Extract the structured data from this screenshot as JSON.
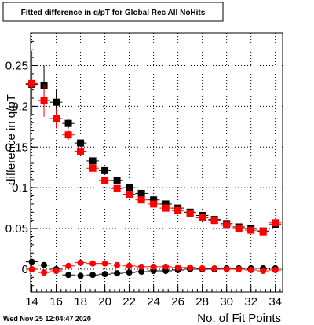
{
  "chart_data": {
    "type": "scatter",
    "title": "Fitted difference in q/pT for Global Rec All NoHits",
    "xlabel": "No. of Fit Points",
    "ylabel": "difference in q/pT",
    "xlim": [
      13.9,
      34.6
    ],
    "ylim": [
      -0.028,
      0.29
    ],
    "xticks": [
      "14",
      "16",
      "18",
      "20",
      "22",
      "24",
      "26",
      "28",
      "30",
      "32",
      "34"
    ],
    "yticks": [
      "0",
      "0.05",
      "0.1",
      "0.15",
      "0.2",
      "0.25"
    ],
    "grid": true,
    "legend": "none",
    "timestamp": "Wed Nov 25 12:04:47 2020",
    "series": [
      {
        "color": "#000000",
        "marker": "square",
        "x": [
          14,
          15,
          16,
          17,
          18,
          19,
          20,
          21,
          22,
          23,
          24,
          25,
          26,
          27,
          28,
          29,
          30,
          31,
          32,
          33,
          34
        ],
        "y": [
          0.227,
          0.225,
          0.205,
          0.179,
          0.155,
          0.133,
          0.121,
          0.109,
          0.1,
          0.093,
          0.085,
          0.08,
          0.075,
          0.07,
          0.066,
          0.061,
          0.056,
          0.052,
          0.05,
          0.047,
          0.055
        ],
        "yerr": [
          0.012,
          0.025,
          0.015,
          0.006,
          0.004,
          0.003,
          0.002,
          0.002,
          0.002,
          0.002,
          0.002,
          0.002,
          0.002,
          0.002,
          0.002,
          0.002,
          0.002,
          0.002,
          0.002,
          0.002,
          0.003
        ]
      },
      {
        "color": "#ff0000",
        "marker": "square",
        "x": [
          14,
          15,
          16,
          17,
          18,
          19,
          20,
          21,
          22,
          23,
          24,
          25,
          26,
          27,
          28,
          29,
          30,
          31,
          32,
          33,
          34
        ],
        "y": [
          0.228,
          0.207,
          0.185,
          0.165,
          0.145,
          0.124,
          0.109,
          0.099,
          0.092,
          0.085,
          0.08,
          0.075,
          0.072,
          0.068,
          0.063,
          0.06,
          0.054,
          0.05,
          0.048,
          0.046,
          0.057
        ],
        "yerr": [
          0.04,
          0.02,
          0.012,
          0.006,
          0.004,
          0.003,
          0.002,
          0.002,
          0.002,
          0.002,
          0.002,
          0.002,
          0.002,
          0.002,
          0.002,
          0.002,
          0.002,
          0.002,
          0.002,
          0.002,
          0.003
        ]
      },
      {
        "color": "#000000",
        "marker": "circle",
        "x": [
          14,
          15,
          16,
          17,
          18,
          19,
          20,
          21,
          22,
          23,
          24,
          25,
          26,
          27,
          28,
          29,
          30,
          31,
          32,
          33,
          34
        ],
        "y": [
          0.009,
          0.005,
          0,
          -0.007,
          -0.008,
          -0.007,
          -0.006,
          -0.005,
          -0.004,
          -0.003,
          -0.002,
          -0.002,
          -0.001,
          0,
          0,
          0,
          0.001,
          0.001,
          0.001,
          0.001,
          0.001
        ],
        "yerr": [
          0.003,
          0.002,
          0.002,
          0.001,
          0.001,
          0.001,
          0.001,
          0.001,
          0.001,
          0.001,
          0.001,
          0.001,
          0.001,
          0.001,
          0.001,
          0.001,
          0.001,
          0.001,
          0.001,
          0.001,
          0.001
        ]
      },
      {
        "color": "#ff0000",
        "marker": "circle",
        "x": [
          14,
          15,
          16,
          17,
          18,
          19,
          20,
          21,
          22,
          23,
          24,
          25,
          26,
          27,
          28,
          29,
          30,
          31,
          32,
          33,
          34
        ],
        "y": [
          0,
          -0.004,
          -0.002,
          0.004,
          0.008,
          0.007,
          0.007,
          0.005,
          0.004,
          0.003,
          0.003,
          0.003,
          0.002,
          0.002,
          0.001,
          0.001,
          0,
          0,
          -0.001,
          -0.002,
          -0.001
        ],
        "yerr": [
          0.003,
          0.002,
          0.002,
          0.001,
          0.001,
          0.001,
          0.001,
          0.001,
          0.001,
          0.001,
          0.001,
          0.001,
          0.001,
          0.001,
          0.001,
          0.001,
          0.001,
          0.001,
          0.001,
          0.001,
          0.001
        ]
      }
    ]
  }
}
